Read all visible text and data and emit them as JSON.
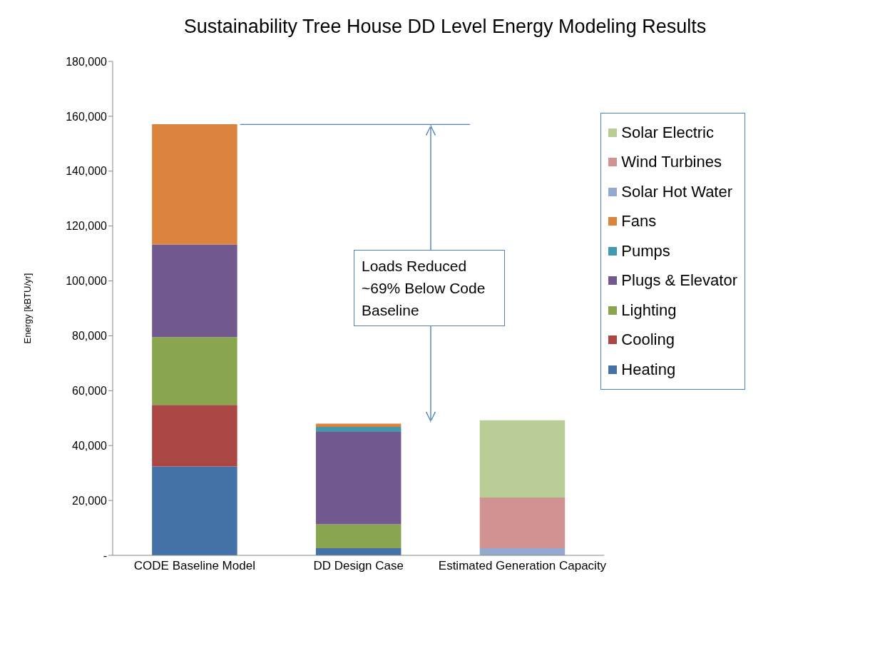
{
  "chart_data": {
    "type": "bar",
    "title": "Sustainability Tree House DD Level Energy Modeling Results",
    "ylabel": "Energy [kBTU/yr]",
    "categories": [
      "CODE Baseline Model",
      "DD Design Case",
      "Estimated Generation Capacity"
    ],
    "stacked": true,
    "series": [
      {
        "name": "Heating",
        "color": "#4472a8",
        "values": [
          32400,
          2600,
          0
        ]
      },
      {
        "name": "Cooling",
        "color": "#aa4643",
        "values": [
          22400,
          0,
          0
        ]
      },
      {
        "name": "Lighting",
        "color": "#89a54e",
        "values": [
          24700,
          8700,
          0
        ]
      },
      {
        "name": "Plugs & Elevator",
        "color": "#71588f",
        "values": [
          33800,
          33700,
          0
        ]
      },
      {
        "name": "Pumps",
        "color": "#4198af",
        "values": [
          0,
          1800,
          0
        ]
      },
      {
        "name": "Fans",
        "color": "#db843d",
        "values": [
          43800,
          1200,
          0
        ]
      },
      {
        "name": "Solar Hot Water",
        "color": "#93a9cf",
        "values": [
          0,
          0,
          2600
        ]
      },
      {
        "name": "Wind Turbines",
        "color": "#d19392",
        "values": [
          0,
          0,
          18500
        ]
      },
      {
        "name": "Solar Electric",
        "color": "#b9cd96",
        "values": [
          0,
          0,
          28100
        ]
      }
    ],
    "ylim": [
      0,
      180000
    ],
    "yticks": [
      {
        "value": 0,
        "label": "-"
      },
      {
        "value": 20000,
        "label": "20,000"
      },
      {
        "value": 40000,
        "label": "40,000"
      },
      {
        "value": 60000,
        "label": "60,000"
      },
      {
        "value": 80000,
        "label": "80,000"
      },
      {
        "value": 100000,
        "label": "100,000"
      },
      {
        "value": 120000,
        "label": "120,000"
      },
      {
        "value": 140000,
        "label": "140,000"
      },
      {
        "value": 160000,
        "label": "160,000"
      },
      {
        "value": 180000,
        "label": "180,000"
      }
    ],
    "ref_lines": [
      {
        "axis": "y",
        "value": 157000,
        "color": "#4f81bd"
      }
    ],
    "grid": false,
    "legend": "top right",
    "annotations": [
      "Loads Reduced ~69% Below Code Baseline"
    ]
  }
}
